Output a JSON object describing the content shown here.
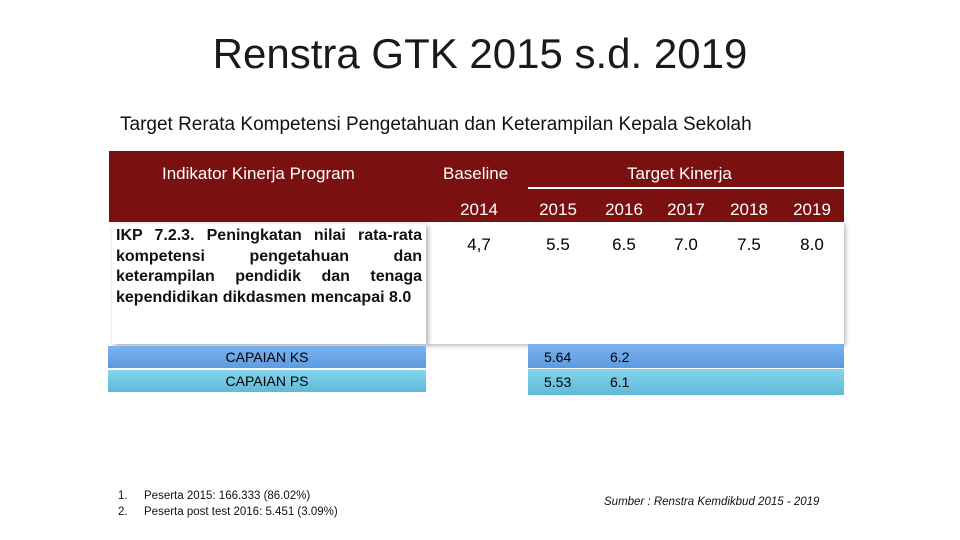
{
  "slide": {
    "title": "Renstra GTK 2015 s.d. 2019",
    "subtitle": "Target Rerata Kompetensi Pengetahuan dan Keterampilan Kepala Sekolah"
  },
  "table": {
    "header": {
      "indicator": "Indikator Kinerja Program",
      "baseline": "Baseline",
      "target": "Target Kinerja"
    },
    "years": [
      "2014",
      "2015",
      "2016",
      "2017",
      "2018",
      "2019"
    ],
    "ikp_text": "IKP 7.2.3. Peningkatan nilai rata-rata kompetensi pengetahuan dan keterampilan pendidik dan tenaga kependidikan dikdasmen mencapai 8.0",
    "values": [
      "4,7",
      "5.5",
      "6.5",
      "7.0",
      "7.5",
      "8.0"
    ],
    "capaian": [
      {
        "label": "CAPAIAN KS",
        "v2015": "5.64",
        "v2016": "6.2"
      },
      {
        "label": "CAPAIAN PS",
        "v2015": "5.53",
        "v2016": "6.1"
      }
    ],
    "colors": {
      "header": "#7b1010",
      "ks": "#6aa6e8",
      "ps": "#6cc6e2"
    }
  },
  "notes": [
    {
      "num": "1.",
      "text": "Peserta 2015: 166.333 (86.02%)"
    },
    {
      "num": "2.",
      "text": "Peserta post test 2016: 5.451 (3.09%)"
    }
  ],
  "source": "Sumber : Renstra Kemdikbud 2015 - 2019"
}
